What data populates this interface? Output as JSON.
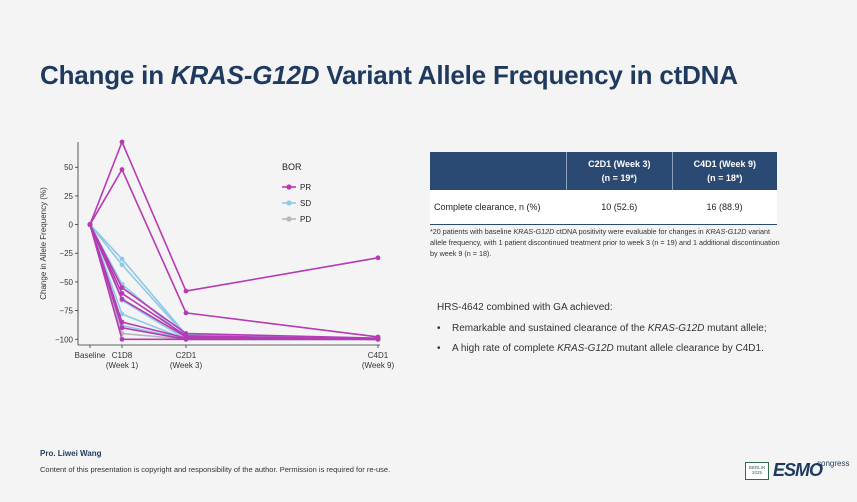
{
  "title": {
    "prefix": "Change in ",
    "emphasis": "KRAS-G12D",
    "suffix": " Variant Allele Frequency in ctDNA"
  },
  "chart_data": {
    "type": "line",
    "title": "",
    "xlabel": "",
    "ylabel": "Change in Allele Frequency (%)",
    "x_ticks": [
      "Baseline",
      "C1D8\n(Week 1)",
      "C2D1\n(Week 3)",
      "C4D1\n(Week 9)"
    ],
    "x_values": [
      0,
      1,
      3,
      9
    ],
    "y_ticks": [
      50,
      25,
      0,
      -25,
      -50,
      -75,
      -100
    ],
    "ylim": [
      -105,
      72
    ],
    "legend": {
      "title": "BOR",
      "placement": "top-right",
      "entries": [
        "PR",
        "SD",
        "PD"
      ]
    },
    "colors": {
      "PR": "#b43bb3",
      "SD": "#8ec9e6",
      "PD": "#b7b7b7"
    },
    "series": [
      {
        "group": "PR",
        "points": [
          [
            0,
            0
          ],
          [
            1,
            72
          ],
          [
            3,
            -58
          ],
          [
            9,
            -29
          ]
        ]
      },
      {
        "group": "PR",
        "points": [
          [
            0,
            0
          ],
          [
            1,
            48
          ],
          [
            3,
            -77
          ],
          [
            9,
            -98
          ]
        ]
      },
      {
        "group": "PR",
        "points": [
          [
            0,
            0
          ],
          [
            1,
            -55
          ],
          [
            3,
            -95
          ],
          [
            9,
            -99
          ]
        ]
      },
      {
        "group": "PR",
        "points": [
          [
            0,
            0
          ],
          [
            1,
            -60
          ],
          [
            3,
            -97
          ],
          [
            9,
            -100
          ]
        ]
      },
      {
        "group": "PR",
        "points": [
          [
            0,
            0
          ],
          [
            1,
            -65
          ],
          [
            3,
            -98
          ],
          [
            9,
            -100
          ]
        ]
      },
      {
        "group": "PR",
        "points": [
          [
            0,
            0
          ],
          [
            1,
            -85
          ],
          [
            3,
            -99
          ],
          [
            9,
            -100
          ]
        ]
      },
      {
        "group": "PR",
        "points": [
          [
            0,
            0
          ],
          [
            1,
            -90
          ],
          [
            3,
            -100
          ],
          [
            9,
            -100
          ]
        ]
      },
      {
        "group": "PR",
        "points": [
          [
            0,
            0
          ],
          [
            1,
            -100
          ],
          [
            3,
            -100
          ],
          [
            9,
            -100
          ]
        ]
      },
      {
        "group": "SD",
        "points": [
          [
            0,
            0
          ],
          [
            1,
            -30
          ],
          [
            3,
            -96
          ],
          [
            9,
            -100
          ]
        ]
      },
      {
        "group": "SD",
        "points": [
          [
            0,
            0
          ],
          [
            1,
            -35
          ],
          [
            3,
            -97
          ],
          [
            9,
            -100
          ]
        ]
      },
      {
        "group": "SD",
        "points": [
          [
            0,
            0
          ],
          [
            1,
            -52
          ],
          [
            3,
            -99
          ],
          [
            9,
            -100
          ]
        ]
      },
      {
        "group": "SD",
        "points": [
          [
            0,
            0
          ],
          [
            1,
            -66
          ],
          [
            3,
            -100
          ],
          [
            9,
            -100
          ]
        ]
      },
      {
        "group": "SD",
        "points": [
          [
            0,
            0
          ],
          [
            1,
            -78
          ],
          [
            3,
            -100
          ],
          [
            9,
            -100
          ]
        ]
      },
      {
        "group": "SD",
        "points": [
          [
            0,
            0
          ],
          [
            1,
            -88
          ],
          [
            3,
            -100
          ],
          [
            9,
            -100
          ]
        ]
      },
      {
        "group": "PD",
        "points": [
          [
            0,
            0
          ],
          [
            1,
            -95
          ],
          [
            3,
            -100
          ]
        ]
      }
    ]
  },
  "table": {
    "headers": [
      {
        "line1": "C2D1 (Week 3)",
        "line2": "(n = 19*)"
      },
      {
        "line1": "C4D1 (Week 9)",
        "line2": "(n = 18*)"
      }
    ],
    "row": {
      "label": "Complete clearance, n (%)",
      "values": [
        "10 (52.6)",
        "16 (88.9)"
      ]
    }
  },
  "footnote": {
    "part1": "*20 patients with baseline ",
    "em1": "KRAS-G12D",
    "part2": " ctDNA positivity were evaluable for changes in ",
    "em2": "KRAS-G12D",
    "part3": " variant allele frequency, with 1 patient discontinued treatment prior to week 3 (n = 19) and 1 additional discontinuation by week 9 (n = 18)."
  },
  "summary": {
    "title": "HRS-4642 combined with GA achieved:",
    "bullet": "•",
    "items": [
      {
        "pre": "Remarkable and sustained clearance of the ",
        "em": "KRAS-G12D",
        "post": " mutant allele;"
      },
      {
        "pre": "A high rate of complete ",
        "em": "KRAS-G12D",
        "post": " mutant allele clearance by C4D1."
      }
    ]
  },
  "author": "Pro. Liwei Wang",
  "copyright": "Content of this presentation is copyright and responsibility of the author. Permission is required for re-use.",
  "logo": {
    "city": "BERLIN",
    "year": "2025",
    "word": "ESMO",
    "suffix": "congress"
  }
}
